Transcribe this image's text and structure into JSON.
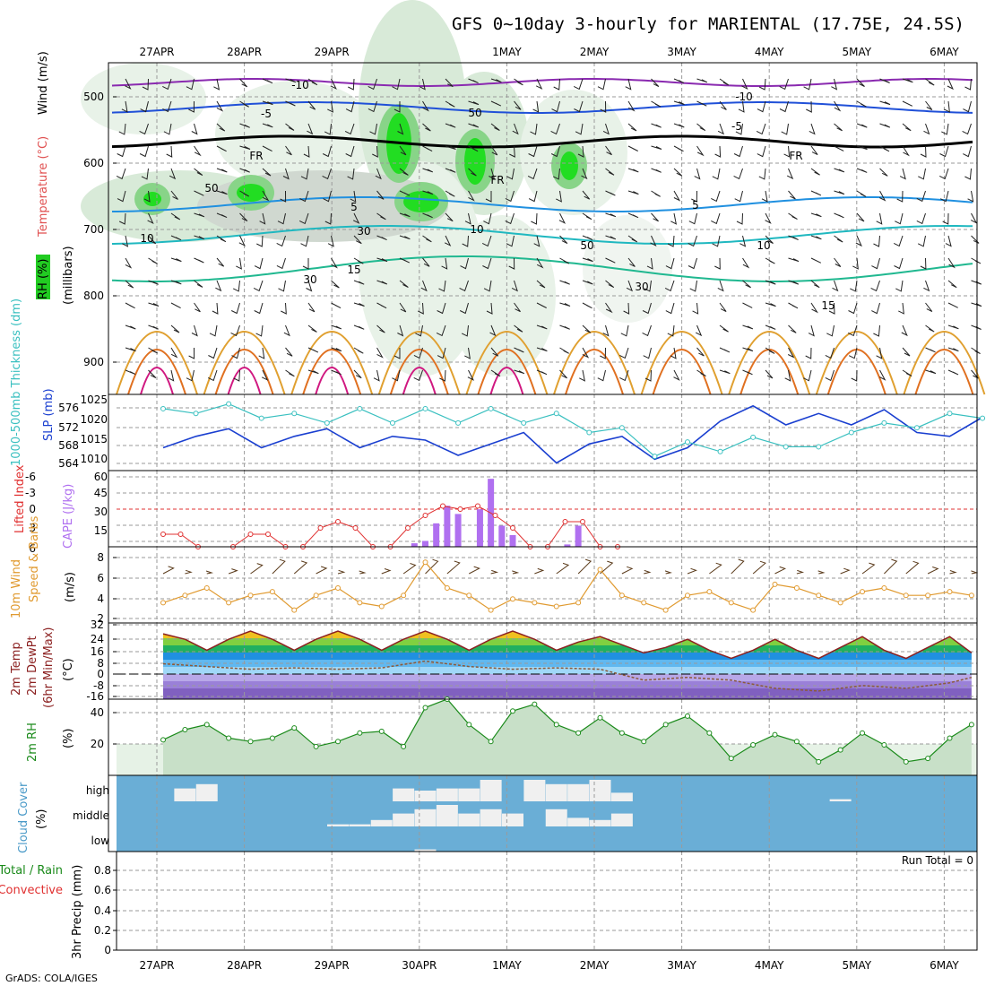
{
  "title": "GFS 0~10day 3-hourly for MARIENTAL (17.75E, 24.5S)",
  "footer": "GrADS: COLA/IGES",
  "date_labels": [
    "27APR",
    "28APR",
    "29APR",
    "30APR",
    "1MAY",
    "2MAY",
    "3MAY",
    "4MAY",
    "5MAY",
    "6MAY"
  ],
  "panels": {
    "upper_air": {
      "label_rh": "RH (%)",
      "label_temp": "Temperature (°C)",
      "label_wind": "Wind (m/s)",
      "label_mb": "(millibars)",
      "yticks": [
        "500",
        "600",
        "700",
        "800",
        "900"
      ],
      "contour_labels": [
        "-10",
        "-5",
        "FR",
        "5",
        "10",
        "15",
        "-10",
        "-5",
        "FR",
        "5",
        "10",
        "15",
        "50",
        "30",
        "30",
        "50",
        "50",
        "30",
        "FR",
        "10"
      ]
    },
    "thickness": {
      "label_thick": "1000-500mb Thickness (dm)",
      "label_slp": "SLP (mb)",
      "yticks_left": [
        "576",
        "572",
        "568",
        "564"
      ],
      "yticks_right": [
        "1025",
        "1020",
        "1015",
        "1010"
      ]
    },
    "cape": {
      "label_li": "Lifted Index",
      "label_cape": "CAPE (J/kg)",
      "yticks_left": [
        "-6",
        "-3",
        "0",
        "3",
        "6"
      ],
      "yticks_right": [
        "60",
        "45",
        "30",
        "15"
      ]
    },
    "wind": {
      "label_title": "10m Wind",
      "label_sub": "Speed & Barbs",
      "label_unit": "(m/s)",
      "yticks": [
        "8",
        "6",
        "4",
        "2"
      ]
    },
    "temp": {
      "label_a": "2m Temp",
      "label_b": "2m DewPt",
      "label_c": "(6hr Min/Max)",
      "label_unit": "(°C)",
      "yticks": [
        "32",
        "24",
        "16",
        "8",
        "0",
        "-8",
        "-16"
      ]
    },
    "rh": {
      "label_a": "2m RH",
      "label_unit": "(%)",
      "yticks": [
        "40",
        "20"
      ]
    },
    "cloud": {
      "label_a": "Cloud Cover",
      "label_unit": "(%)",
      "levels": [
        "high",
        "middle",
        "low"
      ]
    },
    "precip": {
      "label_a": "Total / Rain",
      "label_b": "Convective",
      "label_c": "3hr Precip (mm)",
      "yticks": [
        "0.8",
        "0.6",
        "0.4",
        "0.2",
        "0"
      ],
      "run_total": "Run Total = 0"
    }
  },
  "colors": {
    "slp": "#1a3fd0",
    "thickness": "#3ac0c0",
    "lifted_index": "#e03030",
    "cape": "#b070f0",
    "wind_speed": "#e09a30",
    "wind_barb": "#5a3a1a",
    "temp_line": "#8b2020",
    "rh_line": "#1a8a1a",
    "rh_fill": "#c8e0c8",
    "cloud_bg": "#6aaed6",
    "cloud_fill": "#f0f0f0"
  },
  "chart_data": [
    {
      "type": "line",
      "name": "thickness_slp",
      "x_unit": "days since 27APR 00Z",
      "series": [
        {
          "name": "SLP (mb)",
          "axis": "right",
          "x": [
            0,
            0.375,
            0.75,
            1.125,
            1.5,
            1.875,
            2.25,
            2.625,
            3.0,
            3.375,
            3.75,
            4.125,
            4.5,
            4.875,
            5.25,
            5.625,
            6.0,
            6.375,
            6.75,
            7.125,
            7.5,
            7.875,
            8.25,
            8.625,
            9.0,
            9.375
          ],
          "values": [
            1013,
            1016,
            1018,
            1013,
            1016,
            1018,
            1013,
            1016,
            1015,
            1011,
            1014,
            1017,
            1009,
            1014,
            1016,
            1010,
            1013,
            1020,
            1024,
            1019,
            1022,
            1019,
            1023,
            1017,
            1016,
            1021
          ]
        },
        {
          "name": "Thickness (dm)",
          "axis": "left",
          "x": [
            0,
            0.375,
            0.75,
            1.125,
            1.5,
            1.875,
            2.25,
            2.625,
            3.0,
            3.375,
            3.75,
            4.125,
            4.5,
            4.875,
            5.25,
            5.625,
            6.0,
            6.375,
            6.75,
            7.125,
            7.5,
            7.875,
            8.25,
            8.625,
            9.0,
            9.375
          ],
          "values": [
            575,
            574,
            576,
            573,
            574,
            572,
            575,
            572,
            575,
            572,
            575,
            572,
            574,
            570,
            571,
            565,
            568,
            566,
            569,
            567,
            567,
            570,
            572,
            571,
            574,
            573
          ]
        }
      ],
      "ylim_left": [
        562,
        578
      ],
      "ylim_right": [
        1007,
        1027
      ]
    },
    {
      "type": "bar",
      "name": "cape_lifted_index",
      "series": [
        {
          "name": "CAPE (J/kg)",
          "x": [
            2.875,
            3.0,
            3.125,
            3.25,
            3.375,
            3.5,
            3.625,
            3.75,
            3.875,
            4.0,
            4.625,
            4.75
          ],
          "values": [
            3,
            5,
            20,
            35,
            28,
            0,
            32,
            58,
            18,
            10,
            2,
            18
          ]
        },
        {
          "name": "Lifted Index",
          "x": [
            0,
            0.2,
            0.4,
            0.8,
            1.0,
            1.2,
            1.4,
            1.6,
            1.8,
            2.0,
            2.2,
            2.4,
            2.6,
            2.8,
            3.0,
            3.2,
            3.4,
            3.6,
            3.8,
            4.0,
            4.2,
            4.4,
            4.6,
            4.8,
            5.0,
            5.2
          ],
          "values": [
            4,
            4,
            6,
            6,
            4,
            4,
            6,
            6,
            3,
            2,
            3,
            6,
            6,
            3,
            1,
            -0.5,
            0,
            -0.5,
            1,
            3,
            6,
            6,
            2,
            2,
            6,
            6
          ]
        }
      ]
    },
    {
      "type": "line",
      "name": "wind_speed",
      "series": [
        {
          "name": "Wind Speed (m/s)",
          "x": [
            0,
            0.25,
            0.5,
            0.75,
            1.0,
            1.25,
            1.5,
            1.75,
            2.0,
            2.25,
            2.5,
            2.75,
            3.0,
            3.25,
            3.5,
            3.75,
            4.0,
            4.25,
            4.5,
            4.75,
            5.0,
            5.25,
            5.5,
            5.75,
            6.0,
            6.25,
            6.5,
            6.75,
            7.0,
            7.25,
            7.5,
            7.75,
            8.0,
            8.25,
            8.5,
            8.75,
            9.0,
            9.25
          ],
          "values": [
            3,
            4,
            5,
            3,
            4,
            4.5,
            2,
            4,
            5,
            3,
            2.5,
            4,
            8.5,
            5,
            4,
            2,
            3.5,
            3,
            2.5,
            3,
            7.5,
            4,
            3,
            2,
            4,
            4.5,
            3,
            2,
            5.5,
            5,
            4,
            3,
            4.5,
            5,
            4,
            4,
            4.5,
            4
          ]
        }
      ]
    },
    {
      "type": "area",
      "name": "temp_dewpoint",
      "series": [
        {
          "name": "2m Temp (°C)",
          "x": [
            0,
            0.25,
            0.5,
            0.75,
            1.0,
            1.25,
            1.5,
            1.75,
            2.0,
            2.25,
            2.5,
            2.75,
            3.0,
            3.25,
            3.5,
            3.75,
            4.0,
            4.25,
            4.5,
            4.75,
            5.0,
            5.25,
            5.5,
            5.75,
            6.0,
            6.25,
            6.5,
            6.75,
            7.0,
            7.25,
            7.5,
            7.75,
            8.0,
            8.25,
            8.5,
            8.75,
            9.0,
            9.25
          ],
          "values": [
            28,
            24,
            16,
            24,
            30,
            24,
            16,
            24,
            30,
            24,
            16,
            24,
            30,
            24,
            16,
            24,
            30,
            24,
            16,
            22,
            26,
            20,
            14,
            18,
            24,
            16,
            10,
            16,
            24,
            16,
            10,
            18,
            26,
            16,
            10,
            18,
            26,
            14
          ]
        },
        {
          "name": "2m DewPt (°C)",
          "x": [
            0,
            0.5,
            1.0,
            1.5,
            2.0,
            2.5,
            3.0,
            3.5,
            4.0,
            4.5,
            5.0,
            5.5,
            6.0,
            6.5,
            7.0,
            7.5,
            8.0,
            8.5,
            9.0,
            9.25
          ],
          "values": [
            6,
            4,
            2,
            3,
            2,
            3,
            8,
            4,
            2,
            3,
            2,
            -6,
            -4,
            -6,
            -12,
            -14,
            -10,
            -12,
            -8,
            -4
          ]
        }
      ],
      "ylim": [
        -20,
        36
      ]
    },
    {
      "type": "area",
      "name": "rh",
      "series": [
        {
          "name": "2m RH (%)",
          "x": [
            0,
            0.25,
            0.5,
            0.75,
            1.0,
            1.25,
            1.5,
            1.75,
            2.0,
            2.25,
            2.5,
            2.75,
            3.0,
            3.25,
            3.5,
            3.75,
            4.0,
            4.25,
            4.5,
            4.75,
            5.0,
            5.25,
            5.5,
            5.75,
            6.0,
            6.25,
            6.5,
            6.75,
            7.0,
            7.25,
            7.5,
            7.75,
            8.0,
            8.25,
            8.5,
            8.75,
            9.0,
            9.25
          ],
          "values": [
            21,
            27,
            30,
            22,
            20,
            22,
            28,
            17,
            20,
            25,
            26,
            17,
            40,
            45,
            30,
            20,
            38,
            42,
            30,
            25,
            34,
            25,
            20,
            30,
            35,
            25,
            10,
            18,
            24,
            20,
            8,
            15,
            25,
            18,
            8,
            10,
            22,
            30
          ]
        }
      ],
      "ylim": [
        0,
        45
      ]
    },
    {
      "type": "bar",
      "name": "cloud_cover",
      "series": [
        {
          "name": "high",
          "x": [
            0.25,
            0.5,
            2.75,
            3.0,
            3.25,
            3.5,
            3.75,
            4.25,
            4.5,
            4.75,
            5.0,
            5.25,
            7.75
          ],
          "values": [
            60,
            80,
            60,
            50,
            60,
            60,
            100,
            100,
            80,
            80,
            100,
            40,
            10
          ]
        },
        {
          "name": "middle",
          "x": [
            2.0,
            2.25,
            2.5,
            2.75,
            3.0,
            3.25,
            3.5,
            3.75,
            4.0,
            4.5,
            4.75,
            5.0,
            5.25
          ],
          "values": [
            10,
            10,
            30,
            60,
            80,
            100,
            60,
            80,
            60,
            80,
            40,
            30,
            60
          ]
        },
        {
          "name": "low",
          "x": [
            3.0
          ],
          "values": [
            10
          ]
        }
      ]
    },
    {
      "type": "line",
      "name": "precip",
      "series": [
        {
          "name": "3hr Precip (mm)",
          "x": [
            0,
            9.25
          ],
          "values": [
            0,
            0
          ]
        }
      ],
      "ylim": [
        0,
        1
      ]
    }
  ]
}
